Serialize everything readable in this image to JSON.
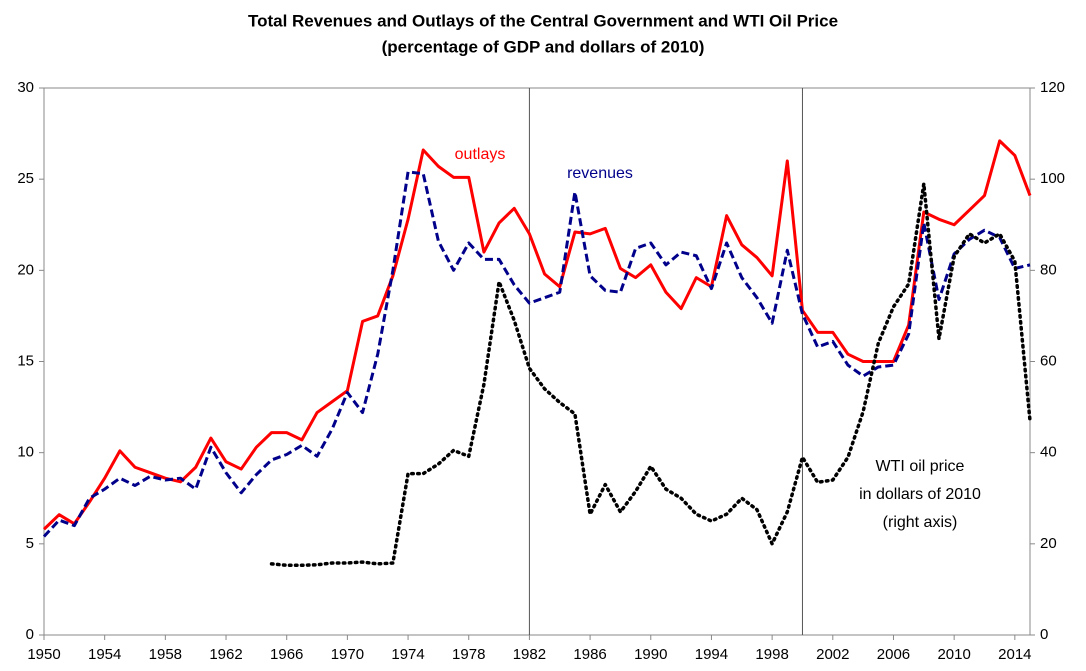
{
  "chart_data": {
    "type": "line",
    "title": "Total Revenues and Outlays of the Central Government and WTI Oil Price",
    "subtitle": "(percentage of GDP and dollars of 2010)",
    "x": [
      1950,
      1951,
      1952,
      1953,
      1954,
      1955,
      1956,
      1957,
      1958,
      1959,
      1960,
      1961,
      1962,
      1963,
      1964,
      1965,
      1966,
      1967,
      1968,
      1969,
      1970,
      1971,
      1972,
      1973,
      1974,
      1975,
      1976,
      1977,
      1978,
      1979,
      1980,
      1981,
      1982,
      1983,
      1984,
      1985,
      1986,
      1987,
      1988,
      1989,
      1990,
      1991,
      1992,
      1993,
      1994,
      1995,
      1996,
      1997,
      1998,
      1999,
      2000,
      2001,
      2002,
      2003,
      2004,
      2005,
      2006,
      2007,
      2008,
      2009,
      2010,
      2011,
      2012,
      2013,
      2014,
      2015
    ],
    "xlim": [
      1950,
      2015
    ],
    "xticks": [
      1950,
      1954,
      1958,
      1962,
      1966,
      1970,
      1974,
      1978,
      1982,
      1986,
      1990,
      1994,
      1998,
      2002,
      2006,
      2010,
      2014
    ],
    "ylim": [
      0,
      30
    ],
    "yticks": [
      0,
      5,
      10,
      15,
      20,
      25,
      30
    ],
    "y2lim": [
      0,
      120
    ],
    "y2ticks": [
      0,
      20,
      40,
      60,
      80,
      100,
      120
    ],
    "vlines": [
      1982,
      2000
    ],
    "grid": false,
    "series": [
      {
        "name": "outlays",
        "color": "#ff0000",
        "dash": "solid",
        "values": [
          5.8,
          6.6,
          6.1,
          7.3,
          8.6,
          10.1,
          9.2,
          8.9,
          8.6,
          8.4,
          9.2,
          10.8,
          9.5,
          9.1,
          10.3,
          11.1,
          11.1,
          10.7,
          12.2,
          12.8,
          13.4,
          17.2,
          17.5,
          19.7,
          22.8,
          26.6,
          25.7,
          25.1,
          25.1,
          21.0,
          22.6,
          23.4,
          22.0,
          19.8,
          19.1,
          22.1,
          22.0,
          22.3,
          20.1,
          19.6,
          20.3,
          18.8,
          17.9,
          19.6,
          19.1,
          23.0,
          21.4,
          20.7,
          19.7,
          26.0,
          17.8,
          16.6,
          16.6,
          15.4,
          15.0,
          15.0,
          15.0,
          17.0,
          23.2,
          22.8,
          22.5,
          23.3,
          24.1,
          27.1,
          26.3,
          24.1
        ]
      },
      {
        "name": "revenues",
        "color": "#00008b",
        "dash": "dashed",
        "values": [
          5.4,
          6.3,
          6.0,
          7.5,
          8.0,
          8.6,
          8.2,
          8.7,
          8.5,
          8.6,
          8.0,
          10.3,
          8.9,
          7.8,
          8.8,
          9.6,
          9.9,
          10.4,
          9.8,
          11.3,
          13.3,
          12.2,
          15.4,
          20.0,
          25.4,
          25.3,
          21.6,
          20.0,
          21.5,
          20.6,
          20.6,
          19.2,
          18.2,
          18.5,
          18.8,
          24.3,
          19.7,
          18.9,
          18.8,
          21.2,
          21.5,
          20.3,
          21.0,
          20.8,
          19.0,
          21.5,
          19.6,
          18.5,
          17.1,
          21.1,
          17.6,
          15.8,
          16.1,
          14.8,
          14.2,
          14.7,
          14.8,
          16.5,
          22.6,
          18.4,
          20.9,
          21.7,
          22.2,
          21.8,
          20.1,
          20.3
        ]
      },
      {
        "name": "WTI oil price",
        "color": "#000000",
        "dash": "dotted",
        "axis": "y2",
        "values": [
          null,
          null,
          null,
          null,
          null,
          null,
          null,
          null,
          null,
          null,
          null,
          null,
          null,
          null,
          null,
          15.6,
          15.3,
          15.3,
          15.4,
          15.8,
          15.8,
          16.0,
          15.6,
          15.8,
          35.4,
          35.4,
          37.5,
          40.5,
          39.2,
          55,
          77.5,
          69,
          58.5,
          54,
          51,
          48.5,
          26.5,
          33,
          27,
          31.5,
          37,
          32,
          30,
          26.5,
          25,
          26.5,
          30,
          27.5,
          20,
          27,
          39,
          33.5,
          34,
          39,
          49,
          64,
          72,
          77,
          99,
          65,
          83,
          88,
          86,
          88,
          82,
          47
        ]
      }
    ],
    "annotations": [
      {
        "text": "outlays",
        "color": "#ff0000"
      },
      {
        "text": "revenues",
        "color": "#00008b"
      },
      {
        "text": "WTI oil price",
        "color": "#000000"
      },
      {
        "text": "in dollars of 2010",
        "color": "#000000"
      },
      {
        "text": "(right axis)",
        "color": "#000000"
      }
    ]
  }
}
